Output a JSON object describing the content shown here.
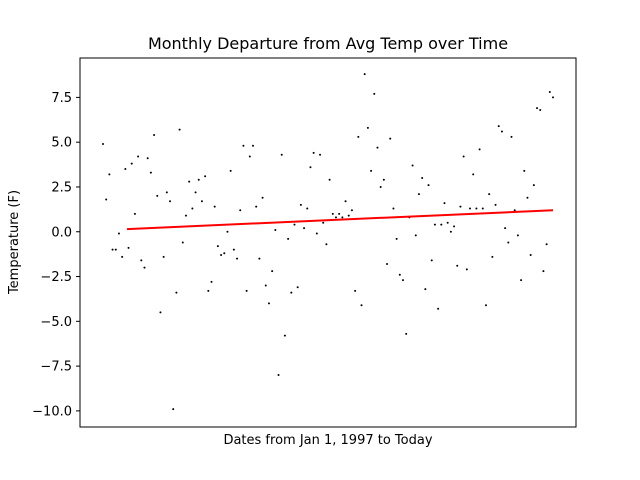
{
  "chart_data": {
    "type": "scatter",
    "title": "Monthly Departure from Avg Temp over Time",
    "xlabel": "Dates from Jan 1, 1997 to Today",
    "ylabel": "Temperature (F)",
    "x_ticks_shown": false,
    "ylim": [
      -10.9,
      9.7
    ],
    "y_ticks": [
      -10.0,
      -7.5,
      -5.0,
      -2.5,
      0.0,
      2.5,
      5.0,
      7.5
    ],
    "y_tick_labels": [
      "−10.0",
      "−7.5",
      "−5.0",
      "−2.5",
      "0.0",
      "2.5",
      "5.0",
      "7.5"
    ],
    "grid": false,
    "legend": "none",
    "colors": {
      "points": "#000000",
      "trend": "#ff0000"
    },
    "series": [
      {
        "values": [
          4.9,
          1.8,
          3.2,
          -1.0,
          -1.0,
          -0.1,
          -1.4,
          3.5,
          -0.9,
          3.8,
          1.0,
          4.2,
          -1.6,
          -2.0,
          4.1,
          3.3,
          5.4,
          2.0,
          -4.5,
          -1.4,
          2.2,
          1.7,
          -9.9,
          -3.4,
          5.7,
          -0.6,
          0.9,
          2.8,
          1.3,
          2.2,
          2.9,
          1.7,
          3.1,
          -3.3,
          -2.8,
          1.4,
          -0.8,
          -1.3,
          -1.2,
          0.0,
          3.4,
          -1.0,
          -1.5,
          1.2,
          4.8,
          -3.3,
          4.2,
          4.8,
          1.4,
          -1.5,
          1.9,
          -3.0,
          -4.0,
          -2.2,
          0.1,
          -8.0,
          4.3,
          -5.8,
          -0.4,
          -3.4,
          0.4,
          -3.1,
          1.5,
          0.2,
          1.3,
          3.6,
          4.4,
          -0.1,
          4.3,
          0.5,
          -0.7,
          2.9,
          1.0,
          0.8,
          1.0,
          0.8,
          1.7,
          0.9,
          1.2,
          -3.3,
          5.3,
          -4.1,
          8.8,
          5.8,
          3.4,
          7.7,
          4.7,
          2.5,
          2.9,
          -1.8,
          5.2,
          1.3,
          -0.4,
          -2.4,
          -2.7,
          -5.7,
          0.8,
          3.7,
          -0.2,
          2.1,
          3.0,
          -3.2,
          2.6,
          -1.6,
          0.4,
          -4.3,
          0.4,
          1.6,
          0.5,
          0.0,
          0.3,
          -1.9,
          1.4,
          4.2,
          -2.1,
          1.3,
          3.2,
          1.3,
          4.6,
          1.3,
          -4.1,
          2.1,
          -1.4,
          1.5,
          5.9,
          5.6,
          0.2,
          -0.6,
          5.3,
          1.2,
          -0.2,
          -2.7,
          3.4,
          1.9,
          -1.3,
          2.6,
          6.9,
          6.8,
          -2.2,
          -0.7,
          7.8,
          7.5
        ]
      }
    ],
    "trend": {
      "start": 0.15,
      "end": 1.2
    }
  }
}
